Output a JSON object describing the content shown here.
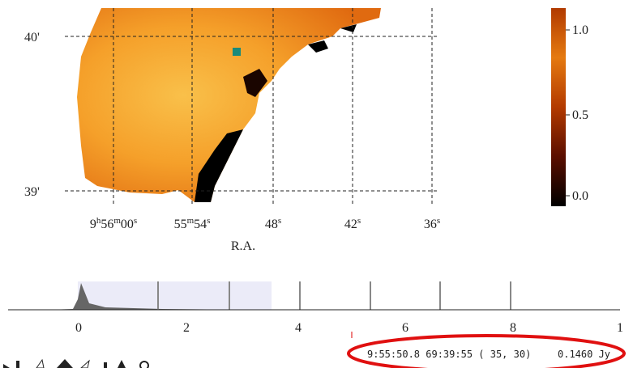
{
  "image_plot": {
    "dec_ticks": [
      "40'",
      "39'"
    ],
    "ra_ticks": [
      [
        "9",
        "h",
        "56",
        "m",
        "00",
        "s"
      ],
      [
        "55",
        "m",
        "54",
        "s"
      ],
      [
        "48",
        "s"
      ],
      [
        "42",
        "s"
      ],
      [
        "36",
        "s"
      ]
    ],
    "x_label": "R.A."
  },
  "colorbar": {
    "ticks": [
      "1.0",
      "0.5",
      "0.0"
    ]
  },
  "histogram": {
    "ticks": [
      "0",
      "2",
      "4",
      "6",
      "8",
      "1"
    ]
  },
  "status": {
    "coords": "9:55:50.8 69:39:55 ( 35, 30)",
    "value": "0.1460 Jy"
  }
}
